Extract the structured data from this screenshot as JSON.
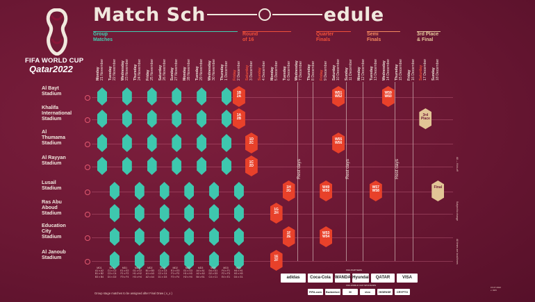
{
  "title": {
    "part1": "Match Sch",
    "part2": "edule"
  },
  "logo": {
    "line1": "FIFA WORLD CUP",
    "line2": "Qatar2022"
  },
  "stages": [
    {
      "label": "Group\nMatches"
    },
    {
      "label": "Round\nof 16"
    },
    {
      "label": "Quarter\nFinals"
    },
    {
      "label": "Semi\nFinals"
    },
    {
      "label": "3rd Place\n& Final"
    }
  ],
  "dates": [
    {
      "day": "Monday",
      "date": "21 November"
    },
    {
      "day": "Tuesday",
      "date": "22 November"
    },
    {
      "day": "Wednesday",
      "date": "23 November"
    },
    {
      "day": "Thursday",
      "date": "24 November"
    },
    {
      "day": "Friday",
      "date": "25 November"
    },
    {
      "day": "Saturday",
      "date": "26 November"
    },
    {
      "day": "Sunday",
      "date": "27 November"
    },
    {
      "day": "Monday",
      "date": "28 November"
    },
    {
      "day": "Tuesday",
      "date": "29 November"
    },
    {
      "day": "Wednesday",
      "date": "30 November"
    },
    {
      "day": "Thursday",
      "date": "1 December"
    },
    {
      "day": "Friday",
      "date": "2 December"
    },
    {
      "day": "Saturday",
      "date": "3 December"
    },
    {
      "day": "Sunday",
      "date": "4 December"
    },
    {
      "day": "Monday",
      "date": "5 December"
    },
    {
      "day": "Tuesday",
      "date": "6 December"
    },
    {
      "day": "Wednesday",
      "date": "7 December"
    },
    {
      "day": "Thursday",
      "date": "8 December"
    },
    {
      "day": "Friday",
      "date": "9 December"
    },
    {
      "day": "Saturday",
      "date": "10 December"
    },
    {
      "day": "Sunday",
      "date": "11 December"
    },
    {
      "day": "Monday",
      "date": "12 December"
    },
    {
      "day": "Tuesday",
      "date": "13 December"
    },
    {
      "day": "Wednesday",
      "date": "14 December"
    },
    {
      "day": "Thursday",
      "date": "15 December"
    },
    {
      "day": "Friday",
      "date": "16 December"
    },
    {
      "day": "Saturday",
      "date": "17 December"
    },
    {
      "day": "Sunday",
      "date": "18 December"
    }
  ],
  "stadiums": [
    "Al Bayt\nStadium",
    "Khalifa\nInternational\nStadium",
    "Al\nThumama\nStadium",
    "Al Rayyan\nStadium",
    "Lusail\nStadium",
    "Ras Abu\nAboud\nStadium",
    "Education\nCity\nStadium",
    "Al Janoub\nStadium"
  ],
  "rest_label": "Rest days",
  "knockout": [
    {
      "row": 0,
      "col": 11,
      "text": "1B\n2A"
    },
    {
      "row": 1,
      "col": 11,
      "text": "1A\n2B"
    },
    {
      "row": 2,
      "col": 12,
      "text": "1D\n2C"
    },
    {
      "row": 3,
      "col": 12,
      "text": "1C\n2D"
    },
    {
      "row": 4,
      "col": 15,
      "text": "1H\n2G"
    },
    {
      "row": 5,
      "col": 14,
      "text": "1G\n2H"
    },
    {
      "row": 6,
      "col": 15,
      "text": "1F\n2E"
    },
    {
      "row": 7,
      "col": 14,
      "text": "1E\n2F"
    },
    {
      "row": 0,
      "col": 19,
      "text": "W51\nW52"
    },
    {
      "row": 2,
      "col": 19,
      "text": "W55\nW56"
    },
    {
      "row": 4,
      "col": 18,
      "text": "W49\nW50"
    },
    {
      "row": 6,
      "col": 18,
      "text": "W53\nW54"
    },
    {
      "row": 0,
      "col": 23,
      "text": "W59\nW60"
    },
    {
      "row": 4,
      "col": 22,
      "text": "W57\nW58"
    },
    {
      "row": 1,
      "col": 26,
      "text": "3rd\nPlace"
    },
    {
      "row": 4,
      "col": 27,
      "text": "Final"
    }
  ],
  "group_columns": [
    {
      "label": "MD1",
      "groups": [
        "A1 v A2",
        "B1 v B2",
        "B3 v B4"
      ]
    },
    {
      "label": "MD1",
      "groups": [
        "C1 v C2",
        "C3 v C4",
        "D1 v D2"
      ]
    },
    {
      "label": "MD1",
      "groups": [
        "E1 v E2",
        "F1 v F2",
        "F3 v F4"
      ]
    },
    {
      "label": "MD1",
      "groups": [
        "G1 v G2",
        "H1 v H2",
        "H3 v H4"
      ]
    },
    {
      "label": "MD2",
      "groups": [
        "B1 v B3",
        "A1 v A3",
        "A2 v A4"
      ]
    },
    {
      "label": "MD2",
      "groups": [
        "C1 v C3",
        "C2 v C4",
        "D1 v D3"
      ]
    },
    {
      "label": "MD2",
      "groups": [
        "E1 v E3",
        "F1 v F3",
        "F2 v F4"
      ]
    },
    {
      "label": "MD2",
      "groups": [
        "G1 v G3",
        "H1 v H3",
        "H2 v H4"
      ]
    },
    {
      "label": "MD3",
      "groups": [
        "A4 v A1",
        "A2 v A3",
        "B4 v B1"
      ]
    },
    {
      "label": "MD3",
      "groups": [
        "D4 v D1",
        "D2 v D3",
        "C4 v C1"
      ]
    },
    {
      "label": "MD3",
      "groups": [
        "F4 v F1",
        "F2 v F3",
        "E4 v E1"
      ]
    },
    {
      "label": "MD3",
      "groups": [
        "H4 v H1",
        "H2 v H3",
        "G4 v G1"
      ]
    }
  ],
  "footnote": "Group stage matches to be assigned after Final Draw ( x_x )",
  "side_notes": [
    "All ↔ Kick-off",
    "Subject to change",
    "All times are local times"
  ],
  "sponsors": {
    "partners_head": "FIFA PARTNERS",
    "partners": [
      "adidas",
      "Coca-Cola",
      "WANDA",
      "Hyundai",
      "QATAR",
      "VISA"
    ],
    "sponsors_head": "FIFA WORLD CUP SPONSORS",
    "sponsors": [
      "FIFA.com",
      "Budweiser",
      "M",
      "vivo",
      "HISENSE",
      "CRYPTO"
    ]
  },
  "version": "15.07.2022\nv. 02/6",
  "colors": {
    "group": "#3ec7ae",
    "knockout": "#e8412a",
    "final": "#e2c596",
    "background": "#6e1a35"
  }
}
